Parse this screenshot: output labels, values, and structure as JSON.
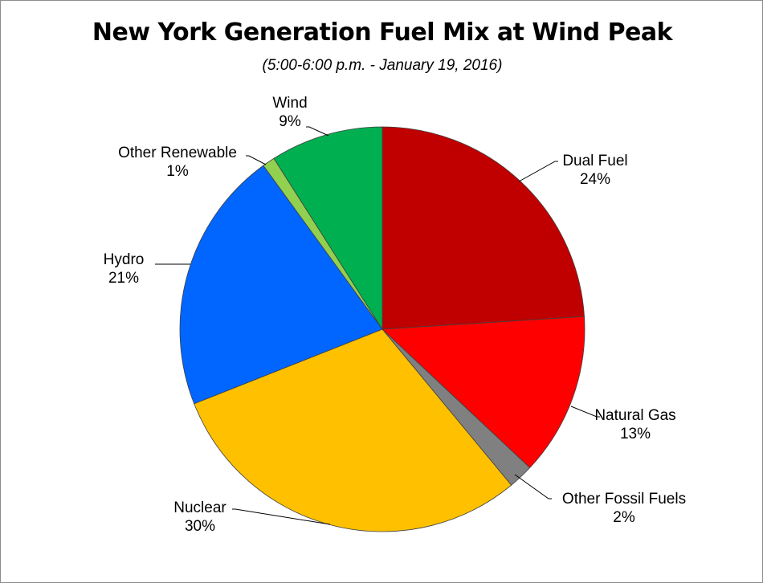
{
  "chart_data": {
    "type": "pie",
    "title": "New York Generation Fuel Mix at Wind Peak",
    "subtitle": "(5:00-6:00 p.m.  -  January 19, 2016)",
    "slices": [
      {
        "name": "Dual Fuel",
        "value": 24,
        "label": "24%",
        "color": "#c00000"
      },
      {
        "name": "Natural Gas",
        "value": 13,
        "label": "13%",
        "color": "#ff0000"
      },
      {
        "name": "Other Fossil Fuels",
        "value": 2,
        "label": "2%",
        "color": "#808080"
      },
      {
        "name": "Nuclear",
        "value": 30,
        "label": "30%",
        "color": "#ffc000"
      },
      {
        "name": "Hydro",
        "value": 21,
        "label": "21%",
        "color": "#0066ff"
      },
      {
        "name": "Other Renewable",
        "value": 1,
        "label": "1%",
        "color": "#92d050"
      },
      {
        "name": "Wind",
        "value": 9,
        "label": "9%",
        "color": "#00b050"
      }
    ]
  }
}
